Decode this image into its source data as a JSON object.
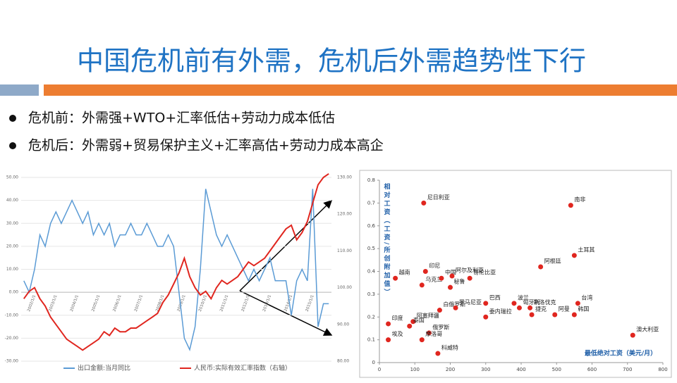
{
  "title": "中国危机前有外需，危机后外需趋势性下行",
  "bullets": [
    "危机前：外需强+WTO+汇率低估+劳动力成本低估",
    "危机后：外需弱+贸易保护主义+汇率高估+劳动力成本高企"
  ],
  "chart_data": [
    {
      "type": "line",
      "categories": [
        null,
        null,
        "2002/1/1",
        null,
        null,
        null,
        "2003/1/1",
        null,
        null,
        null,
        "2004/1/1",
        null,
        null,
        null,
        "2005/1/1",
        null,
        null,
        null,
        "2006/1/1",
        null,
        null,
        null,
        "2007/1/1",
        null,
        null,
        null,
        "2008/1/1",
        null,
        null,
        null,
        "2009/1/1",
        null,
        null,
        null,
        "2010/1/1",
        null,
        null,
        null,
        "2011/1/1",
        null,
        null,
        null,
        "2012/1/1",
        null,
        null,
        null,
        "2013/1/1",
        null,
        null,
        null,
        "2014/1/1",
        null,
        null,
        null,
        "2015/1/1",
        null,
        null,
        null
      ],
      "series": [
        {
          "name": "出口金额:当月同比",
          "color": "#5b9bd5",
          "values": [
            5,
            0,
            10,
            25,
            20,
            30,
            35,
            30,
            35,
            40,
            35,
            30,
            35,
            25,
            30,
            25,
            30,
            20,
            25,
            25,
            30,
            25,
            25,
            30,
            25,
            20,
            20,
            25,
            20,
            0,
            -20,
            -25,
            -15,
            10,
            45,
            35,
            25,
            20,
            25,
            20,
            15,
            10,
            5,
            10,
            5,
            10,
            15,
            5,
            5,
            5,
            -10,
            5,
            10,
            5,
            45,
            -15,
            -5,
            -5
          ]
        },
        {
          "name": "人民币:实际有效汇率指数（右轴）",
          "color": "#e0261f",
          "axis": "y2",
          "values": [
            97,
            99,
            100,
            97,
            95,
            92,
            90,
            88,
            86,
            85,
            84,
            83,
            84,
            85,
            86,
            88,
            87,
            89,
            88,
            88,
            89,
            89,
            90,
            91,
            92,
            93,
            96,
            98,
            101,
            104,
            108,
            103,
            100,
            98,
            99,
            97,
            100,
            102,
            101,
            102,
            103,
            105,
            107,
            106,
            107,
            108,
            110,
            112,
            114,
            116,
            117,
            113,
            115,
            118,
            123,
            128,
            130,
            131
          ]
        }
      ],
      "ylim": [
        -30,
        50
      ],
      "yticks": [
        {
          "value": -30,
          "label": "-30.00"
        },
        {
          "value": -20,
          "label": "-20.00"
        },
        {
          "value": -10,
          "label": "-10.00"
        },
        {
          "value": 0,
          "label": "0.00"
        },
        {
          "value": 10,
          "label": "10.00"
        },
        {
          "value": 20,
          "label": "20.00"
        },
        {
          "value": 30,
          "label": "30.00"
        },
        {
          "value": 40,
          "label": "40.00"
        },
        {
          "value": 50,
          "label": "50.00"
        }
      ],
      "y2lim": [
        80,
        130
      ],
      "y2ticks": [
        {
          "value": 80,
          "label": "80.00"
        },
        {
          "value": 90,
          "label": "90.00"
        },
        {
          "value": 100,
          "label": "100.00"
        },
        {
          "value": 110,
          "label": "110.00"
        },
        {
          "value": 120,
          "label": "120.00"
        },
        {
          "value": 130,
          "label": "130.00"
        }
      ]
    },
    {
      "type": "scatter",
      "color": "#e0261f",
      "xlabel": "最低绝对工资（美元/月）",
      "ylabel": "相对工资（工资/所创附加值）",
      "labels": [
        "尼日利亚",
        "南非",
        "土耳其",
        "阿根廷",
        "印尼",
        "越南",
        "乌克兰",
        "中国",
        "阿尔及利亚",
        "秘鲁",
        "哥伦比亚",
        "巴西",
        "白俄罗斯",
        "罗马尼亚",
        "波兰",
        "匈牙利",
        "斯洛伐克",
        "捷克",
        "阿曼",
        "韩国",
        "台湾",
        "委内瑞拉",
        "印度",
        "阿塞拜疆",
        "泰国",
        "俄罗斯",
        "埃及",
        "摩洛哥",
        "科威特",
        "澳大利亚"
      ],
      "x": [
        125,
        540,
        550,
        455,
        130,
        45,
        120,
        175,
        205,
        200,
        255,
        300,
        170,
        215,
        380,
        395,
        425,
        430,
        495,
        550,
        560,
        300,
        25,
        95,
        85,
        140,
        25,
        120,
        165,
        715
      ],
      "values": [
        0.7,
        0.69,
        0.47,
        0.42,
        0.4,
        0.37,
        0.34,
        0.37,
        0.38,
        0.33,
        0.37,
        0.26,
        0.23,
        0.24,
        0.26,
        0.24,
        0.24,
        0.21,
        0.21,
        0.21,
        0.26,
        0.2,
        0.17,
        0.18,
        0.16,
        0.13,
        0.1,
        0.1,
        0.04,
        0.12
      ],
      "xlim": [
        0,
        800
      ],
      "xticks": [
        0,
        100,
        200,
        300,
        400,
        500,
        600,
        700,
        800
      ],
      "ylim": [
        0,
        0.8
      ],
      "yticks": [
        0,
        0.1,
        0.2,
        0.3,
        0.4,
        0.5,
        0.6,
        0.7,
        0.8
      ]
    }
  ]
}
